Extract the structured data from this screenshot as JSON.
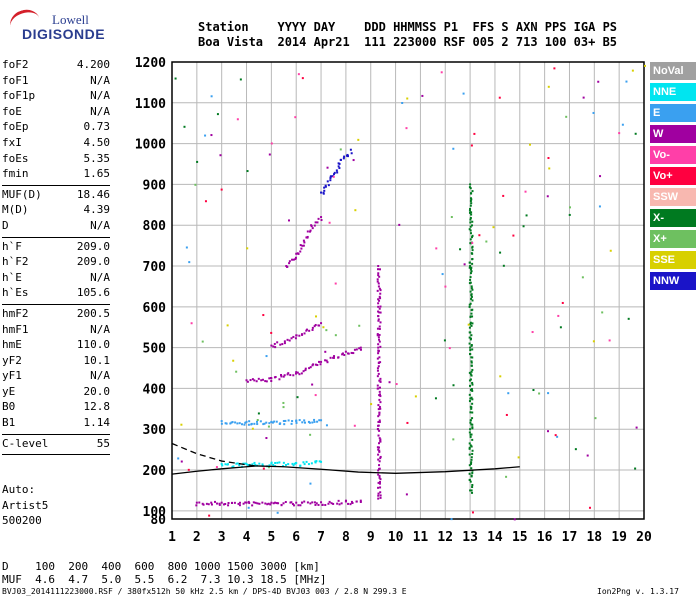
{
  "logo": {
    "line1": "Lowell",
    "line2": "DIGISONDE"
  },
  "header": {
    "line1": "Station    YYYY DAY    DDD HHMMSS P1  FFS S AXN PPS IGA PS",
    "line2": "Boa Vista  2014 Apr21  111 223000 RSF 005 2 713 100 03+ B5"
  },
  "params": [
    [
      [
        "foF2",
        "4.200"
      ],
      [
        "foF1",
        "N/A"
      ],
      [
        "foF1p",
        "N/A"
      ],
      [
        "foE",
        "N/A"
      ],
      [
        "foEp",
        "0.73"
      ],
      [
        "fxI",
        "4.50"
      ],
      [
        "foEs",
        "5.35"
      ],
      [
        "fmin",
        "1.65"
      ]
    ],
    [
      [
        "MUF(D)",
        "18.46"
      ],
      [
        "M(D)",
        "4.39"
      ],
      [
        "D",
        "N/A"
      ]
    ],
    [
      [
        "h`F",
        "209.0"
      ],
      [
        "h`F2",
        "209.0"
      ],
      [
        "h`E",
        "N/A"
      ],
      [
        "h`Es",
        "105.6"
      ]
    ],
    [
      [
        "hmF2",
        "200.5"
      ],
      [
        "hmF1",
        "N/A"
      ],
      [
        "hmE",
        "110.0"
      ],
      [
        "yF2",
        "10.1"
      ],
      [
        "yF1",
        "N/A"
      ],
      [
        "yE",
        "20.0"
      ],
      [
        "B0",
        "12.8"
      ],
      [
        "B1",
        "1.14"
      ]
    ],
    [
      [
        "C-level",
        "55"
      ]
    ]
  ],
  "auto": {
    "l1": "Auto:",
    "l2": "Artist5",
    "l3": "500200"
  },
  "legend": [
    {
      "label": "NoVal",
      "color": "#a0a0a0"
    },
    {
      "label": "NNE",
      "color": "#00e5f0"
    },
    {
      "label": "E",
      "color": "#3aa0f0"
    },
    {
      "label": "W",
      "color": "#a000a0"
    },
    {
      "label": "Vo-",
      "color": "#ff3fa8"
    },
    {
      "label": "Vo+",
      "color": "#ff0040"
    },
    {
      "label": "SSW",
      "color": "#f8b8b0"
    },
    {
      "label": "X-",
      "color": "#007a20"
    },
    {
      "label": "X+",
      "color": "#6ec060"
    },
    {
      "label": "SSE",
      "color": "#d8d000"
    },
    {
      "label": "NNW",
      "color": "#1a14c8"
    }
  ],
  "footer": {
    "d_line": "D    100  200  400  600  800 1000 1500 3000 [km]",
    "muf_line": "MUF  4.6  4.7  5.0  5.5  6.2  7.3 10.3 18.5 [MHz]",
    "left": "BVJ03_2014111223000.RSF / 380fx512h 50 kHz 2.5 km / DPS-4D BVJ03 003 / 2.8 N 299.3 E",
    "right": "Ion2Png v. 1.3.17"
  },
  "chart_data": {
    "type": "scatter",
    "xlim": [
      1,
      20
    ],
    "ylim": [
      80,
      1200
    ],
    "x_ticks": [
      1,
      2,
      3,
      4,
      5,
      6,
      7,
      8,
      9,
      10,
      11,
      12,
      13,
      14,
      15,
      16,
      17,
      18,
      19,
      20
    ],
    "y_ticks": [
      80,
      100,
      200,
      300,
      400,
      500,
      600,
      700,
      800,
      900,
      1000,
      1100,
      1200
    ],
    "grid": true,
    "traces": [
      {
        "color": "#a000a0",
        "points": [
          [
            2.0,
            120
          ],
          [
            3.0,
            120
          ],
          [
            4.0,
            120
          ],
          [
            5.0,
            120
          ],
          [
            6.0,
            120
          ],
          [
            7.0,
            121
          ],
          [
            8.0,
            123
          ],
          [
            8.6,
            125
          ]
        ]
      },
      {
        "color": "#00e5f0",
        "points": [
          [
            3.0,
            215
          ],
          [
            4.0,
            215
          ],
          [
            5.0,
            216
          ],
          [
            6.0,
            217
          ],
          [
            7.0,
            220
          ]
        ]
      },
      {
        "color": "#3aa0f0",
        "points": [
          [
            3.0,
            320
          ],
          [
            4.0,
            318
          ],
          [
            5.0,
            318
          ],
          [
            6.0,
            320
          ],
          [
            7.0,
            322
          ]
        ]
      },
      {
        "color": "#a000a0",
        "points": [
          [
            4.0,
            420
          ],
          [
            5.0,
            425
          ],
          [
            6.0,
            440
          ],
          [
            7.0,
            465
          ],
          [
            8.0,
            490
          ],
          [
            8.6,
            500
          ]
        ]
      },
      {
        "color": "#a000a0",
        "points": [
          [
            5.0,
            505
          ],
          [
            6.0,
            530
          ],
          [
            7.0,
            560
          ]
        ]
      },
      {
        "color": "#a000a0",
        "points": [
          [
            5.6,
            700
          ],
          [
            6.0,
            730
          ],
          [
            6.6,
            800
          ],
          [
            7.0,
            820
          ]
        ]
      },
      {
        "color": "#1a14c8",
        "points": [
          [
            7.0,
            880
          ],
          [
            7.4,
            920
          ],
          [
            7.8,
            960
          ],
          [
            8.2,
            985
          ]
        ]
      },
      {
        "color": "#a000a0",
        "points": [
          [
            9.3,
            130
          ],
          [
            9.3,
            250
          ],
          [
            9.3,
            400
          ],
          [
            9.3,
            500
          ],
          [
            9.3,
            600
          ],
          [
            9.3,
            700
          ]
        ]
      },
      {
        "color": "#007a20",
        "points": [
          [
            13.0,
            150
          ],
          [
            13.0,
            300
          ],
          [
            13.0,
            500
          ],
          [
            13.0,
            700
          ],
          [
            13.0,
            900
          ]
        ]
      }
    ],
    "fitted_curves": [
      {
        "style": "dashed",
        "points": [
          [
            1.0,
            265
          ],
          [
            2.0,
            240
          ],
          [
            3.0,
            222
          ],
          [
            4.0,
            213
          ],
          [
            4.4,
            210
          ]
        ]
      },
      {
        "style": "solid",
        "points": [
          [
            1.0,
            190
          ],
          [
            2.0,
            197
          ],
          [
            3.0,
            203
          ],
          [
            4.0,
            208
          ],
          [
            4.4,
            210
          ]
        ]
      },
      {
        "style": "solid",
        "points": [
          [
            4.4,
            210
          ],
          [
            5.5,
            208
          ],
          [
            7.0,
            202
          ],
          [
            8.5,
            195
          ],
          [
            10.0,
            192
          ],
          [
            12.0,
            196
          ],
          [
            14.0,
            203
          ],
          [
            15.0,
            208
          ]
        ]
      }
    ]
  }
}
